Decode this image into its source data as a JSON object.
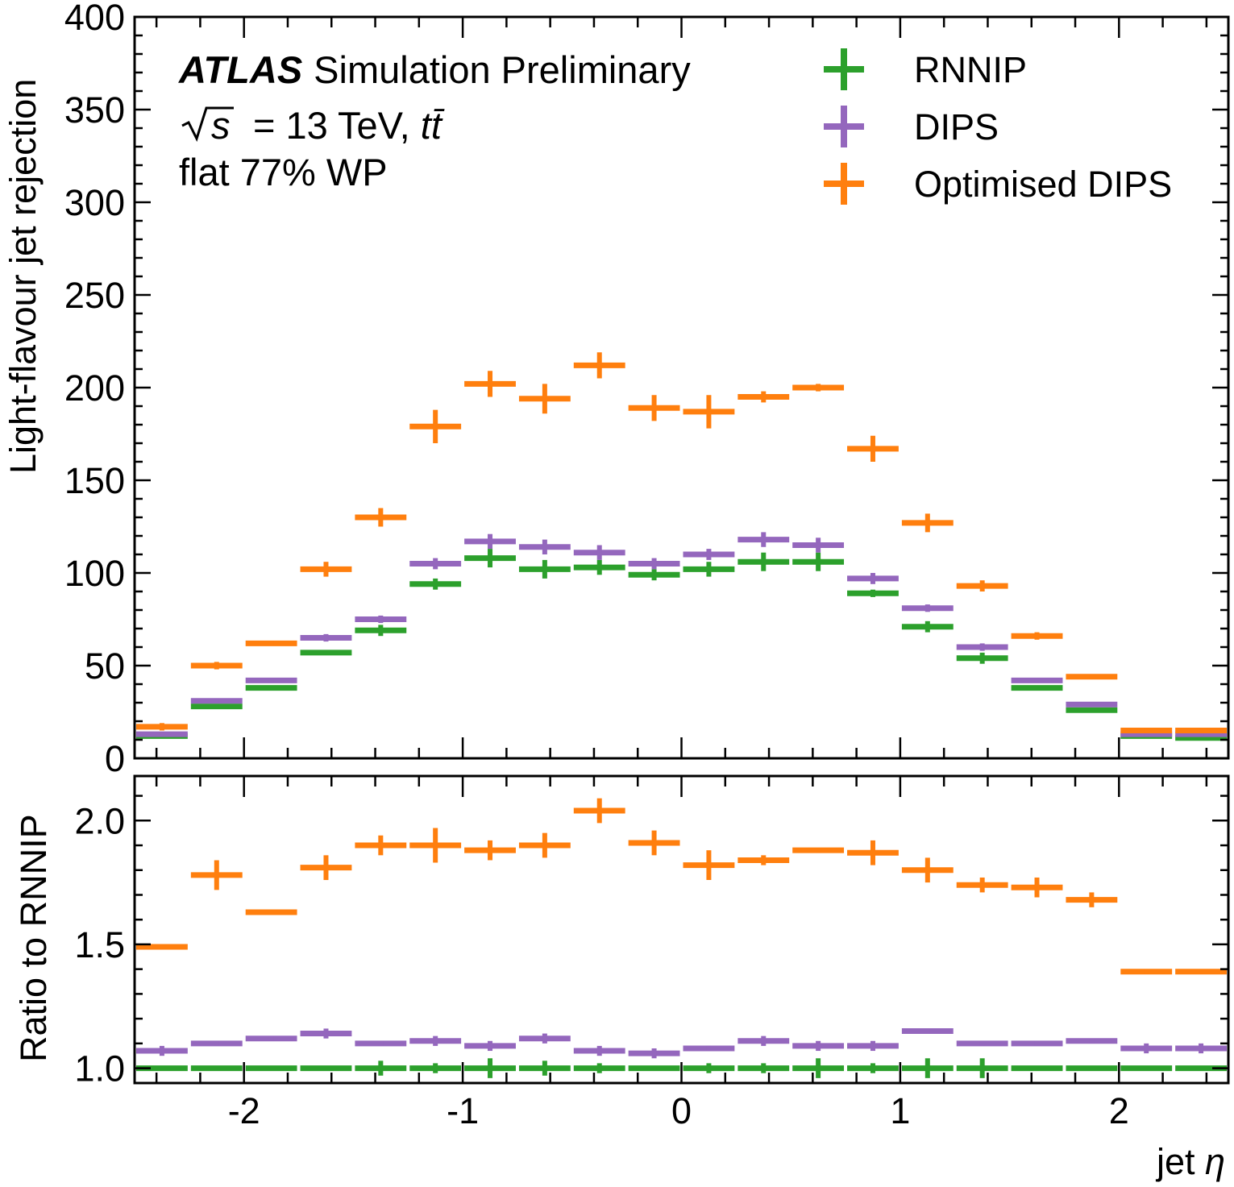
{
  "chart_data": {
    "type": "scatter",
    "x_bin_edges": [
      -2.5,
      -2.25,
      -2.0,
      -1.75,
      -1.5,
      -1.25,
      -1.0,
      -0.75,
      -0.5,
      -0.25,
      0.0,
      0.25,
      0.5,
      0.75,
      1.0,
      1.25,
      1.5,
      1.75,
      2.0,
      2.25,
      2.5
    ],
    "x_centers": [
      -2.375,
      -2.125,
      -1.875,
      -1.625,
      -1.375,
      -1.125,
      -0.875,
      -0.625,
      -0.375,
      -0.125,
      0.125,
      0.375,
      0.625,
      0.875,
      1.125,
      1.375,
      1.625,
      1.875,
      2.125,
      2.375
    ],
    "xlabel": "jet η",
    "xlim": [
      -2.5,
      2.5
    ],
    "xticks": [
      "-2",
      "-1",
      "0",
      "1",
      "2"
    ],
    "xtick_values": [
      -2,
      -1,
      0,
      1,
      2
    ],
    "annotations": {
      "atlas": "ATLAS",
      "status": "Simulation Preliminary",
      "energy_sqrt": "√s",
      "energy_rest": "= 13 TeV, t",
      "energy_bar": "t̄",
      "wp": "flat 77% WP"
    },
    "legend_position": "top-right",
    "series": [
      {
        "name": "RNNIP",
        "color": "#2ca02c"
      },
      {
        "name": "DIPS",
        "color": "#9467bd"
      },
      {
        "name": "Optimised DIPS",
        "color": "#ff7f0e"
      }
    ],
    "panels": [
      {
        "ylabel": "Light-flavour jet rejection",
        "ylim": [
          0,
          400
        ],
        "yticks": [
          "0",
          "50",
          "100",
          "150",
          "200",
          "250",
          "300",
          "350",
          "400"
        ],
        "ytick_values": [
          0,
          50,
          100,
          150,
          200,
          250,
          300,
          350,
          400
        ],
        "values": {
          "RNNIP": [
            12,
            28,
            38,
            57,
            69,
            94,
            108,
            102,
            103,
            99,
            102,
            106,
            106,
            89,
            71,
            54,
            38,
            26,
            12,
            11
          ],
          "DIPS": [
            13,
            31,
            42,
            65,
            75,
            105,
            117,
            114,
            111,
            105,
            110,
            118,
            115,
            97,
            81,
            60,
            42,
            29,
            13,
            13
          ],
          "Optimised DIPS": [
            17,
            50,
            62,
            102,
            130,
            179,
            202,
            194,
            212,
            189,
            187,
            195,
            200,
            167,
            127,
            93,
            66,
            44,
            15,
            15
          ]
        },
        "errors": {
          "RNNIP": [
            1,
            1,
            1,
            1,
            3,
            3,
            5,
            5,
            4,
            3,
            4,
            5,
            5,
            2,
            3,
            3,
            1,
            1,
            1,
            1
          ],
          "DIPS": [
            1,
            1,
            1,
            2,
            2,
            3,
            4,
            4,
            4,
            3,
            3,
            4,
            4,
            3,
            2,
            2,
            1,
            1,
            1,
            1
          ],
          "Optimised DIPS": [
            2,
            2,
            1,
            4,
            5,
            9,
            7,
            8,
            7,
            7,
            9,
            3,
            2,
            7,
            5,
            3,
            2,
            1,
            1,
            1
          ]
        }
      },
      {
        "ylabel": "Ratio to RNNIP",
        "ylim": [
          0.94,
          2.18
        ],
        "yticks": [
          "1.0",
          "1.5",
          "2.0"
        ],
        "ytick_values": [
          1.0,
          1.5,
          2.0
        ],
        "values": {
          "RNNIP": [
            1,
            1,
            1,
            1,
            1,
            1,
            1,
            1,
            1,
            1,
            1,
            1,
            1,
            1,
            1,
            1,
            1,
            1,
            1,
            1
          ],
          "DIPS": [
            1.07,
            1.1,
            1.12,
            1.14,
            1.1,
            1.11,
            1.09,
            1.12,
            1.07,
            1.06,
            1.08,
            1.11,
            1.09,
            1.09,
            1.15,
            1.1,
            1.1,
            1.11,
            1.08,
            1.08
          ],
          "Optimised DIPS": [
            1.49,
            1.78,
            1.63,
            1.81,
            1.9,
            1.9,
            1.88,
            1.9,
            2.04,
            1.91,
            1.82,
            1.84,
            1.88,
            1.87,
            1.8,
            1.74,
            1.73,
            1.68,
            1.39,
            1.39
          ]
        },
        "errors": {
          "RNNIP": [
            0.01,
            0.01,
            0.01,
            0.01,
            0.03,
            0.02,
            0.04,
            0.03,
            0.02,
            0.01,
            0.02,
            0.02,
            0.04,
            0.02,
            0.04,
            0.04,
            0.01,
            0.01,
            0.01,
            0.01
          ],
          "DIPS": [
            0.02,
            0.01,
            0.01,
            0.02,
            0.01,
            0.02,
            0.02,
            0.02,
            0.02,
            0.02,
            0.01,
            0.02,
            0.02,
            0.02,
            0.01,
            0.01,
            0.01,
            0.01,
            0.02,
            0.02
          ],
          "Optimised DIPS": [
            0.01,
            0.06,
            0.0,
            0.05,
            0.04,
            0.07,
            0.04,
            0.05,
            0.05,
            0.05,
            0.06,
            0.02,
            0.01,
            0.05,
            0.05,
            0.03,
            0.04,
            0.03,
            0.01,
            0.01
          ]
        }
      }
    ]
  }
}
